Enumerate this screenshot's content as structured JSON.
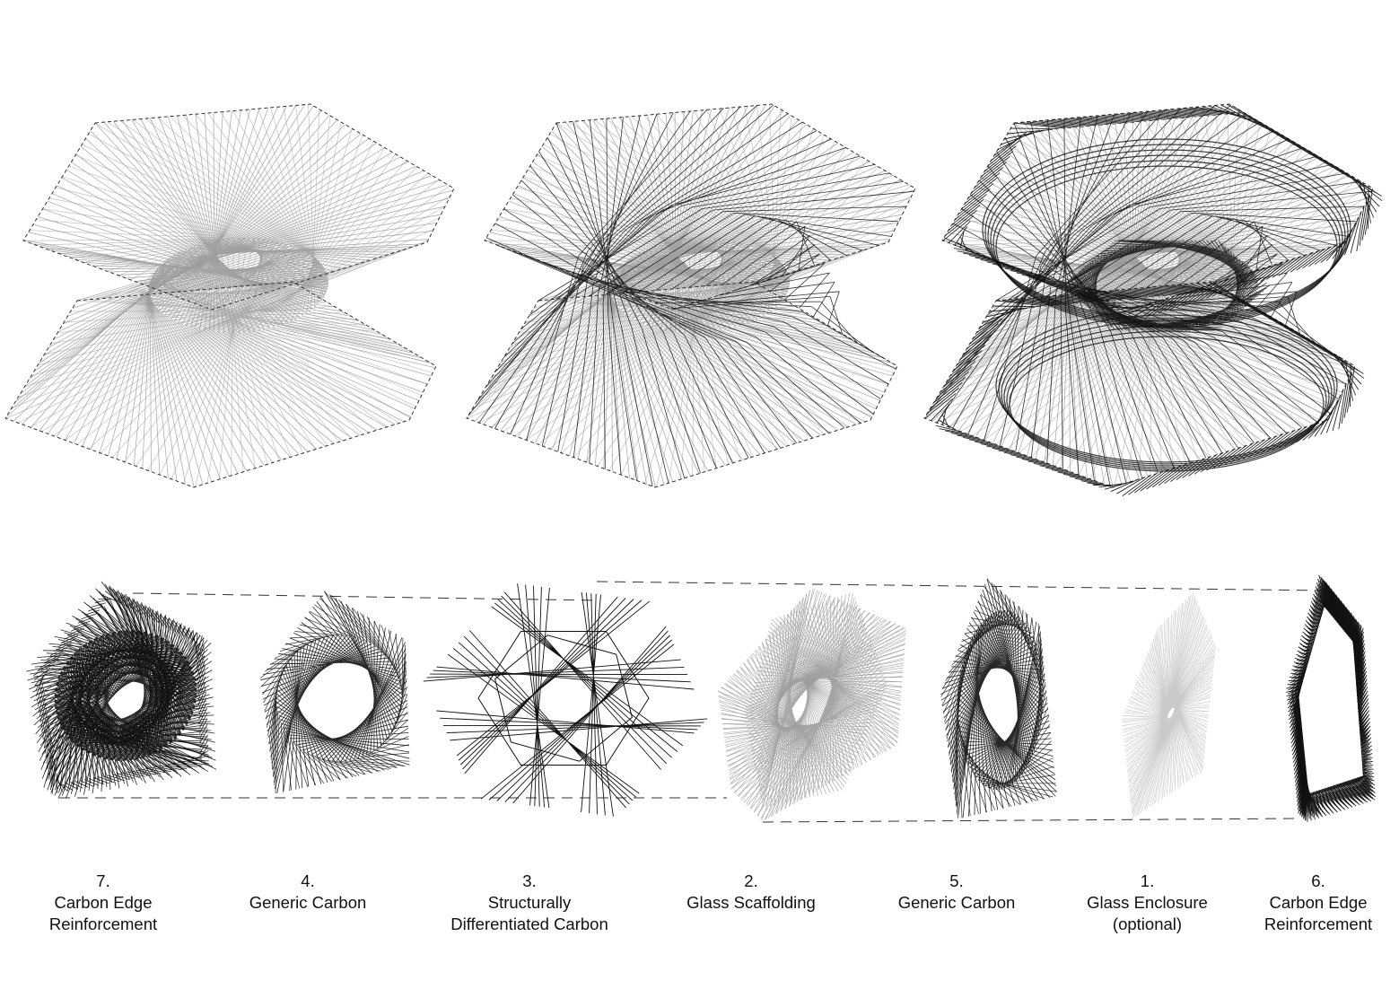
{
  "layers": [
    {
      "number": "7.",
      "lines": [
        "Carbon Edge",
        "Reinforcement"
      ]
    },
    {
      "number": "4.",
      "lines": [
        "Generic Carbon"
      ]
    },
    {
      "number": "3.",
      "lines": [
        "Structurally",
        "Differentiated Carbon"
      ]
    },
    {
      "number": "2.",
      "lines": [
        "Glass Scaffolding"
      ]
    },
    {
      "number": "5.",
      "lines": [
        "Generic Carbon"
      ]
    },
    {
      "number": "1.",
      "lines": [
        "Glass Enclosure",
        "(optional)"
      ]
    },
    {
      "number": "6.",
      "lines": [
        "Carbon Edge",
        "Reinforcement"
      ]
    }
  ],
  "colors": {
    "carbon": "#111111",
    "glass": "#9a9a9a",
    "glass_light": "#c8c8c8",
    "dashed": "#333333"
  }
}
